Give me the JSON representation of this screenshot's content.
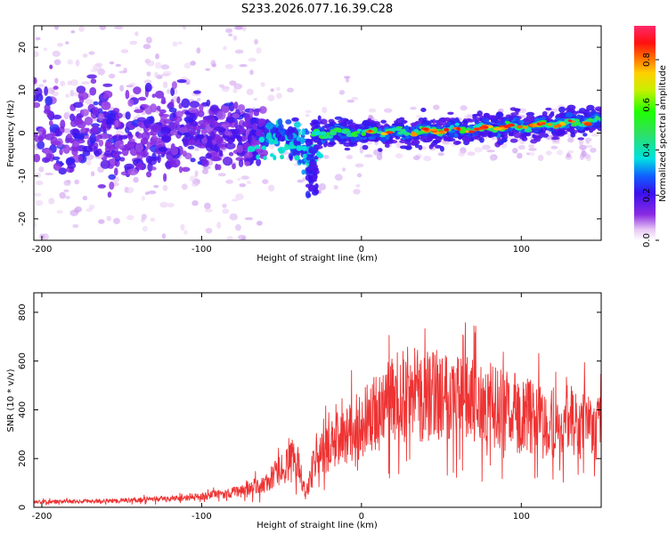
{
  "figure": {
    "title": "S233.2026.077.16.39.C28"
  },
  "chart_data": [
    {
      "type": "heatmap",
      "title": "",
      "xlabel": "Height of straight line (km)",
      "ylabel": "Frequency (Hz)",
      "xlim": [
        -205,
        150
      ],
      "ylim": [
        -25,
        25
      ],
      "xticks": [
        -200,
        -100,
        0,
        100
      ],
      "yticks": [
        -20,
        -10,
        0,
        10,
        20
      ],
      "colorbar": {
        "label": "Normalized spectral amplitude",
        "range": [
          0.0,
          0.95
        ],
        "ticks": [
          0.0,
          0.2,
          0.4,
          0.6,
          0.8
        ]
      },
      "features": {
        "scatter_region": {
          "x": [
            -205,
            -60
          ],
          "freq_spread_hz": 25,
          "amplitude": "low"
        },
        "descending_feature": {
          "x": [
            -60,
            -28
          ],
          "freq_from_hz": 0,
          "freq_to_hz": -15
        },
        "main_band": {
          "x": [
            -30,
            150
          ],
          "freq_start_hz": 0,
          "freq_end_hz": 3,
          "peak_amplitude": 0.9
        }
      }
    },
    {
      "type": "line",
      "title": "",
      "xlabel": "Height of straight line (km)",
      "ylabel": "SNR (10 * v/v)",
      "xlim": [
        -205,
        150
      ],
      "ylim": [
        0,
        880
      ],
      "xticks": [
        -200,
        -100,
        0,
        100
      ],
      "yticks": [
        0,
        200,
        400,
        600,
        800
      ],
      "color": "#ee3333",
      "x": [
        -205,
        -180,
        -150,
        -120,
        -100,
        -80,
        -60,
        -50,
        -40,
        -35,
        -30,
        -20,
        -10,
        0,
        10,
        20,
        30,
        40,
        50,
        60,
        70,
        80,
        90,
        100,
        110,
        120,
        130,
        140,
        150
      ],
      "values": [
        22,
        24,
        28,
        35,
        45,
        60,
        95,
        160,
        200,
        50,
        180,
        250,
        300,
        340,
        390,
        440,
        470,
        450,
        480,
        460,
        430,
        420,
        400,
        380,
        360,
        340,
        360,
        330,
        320
      ]
    }
  ]
}
